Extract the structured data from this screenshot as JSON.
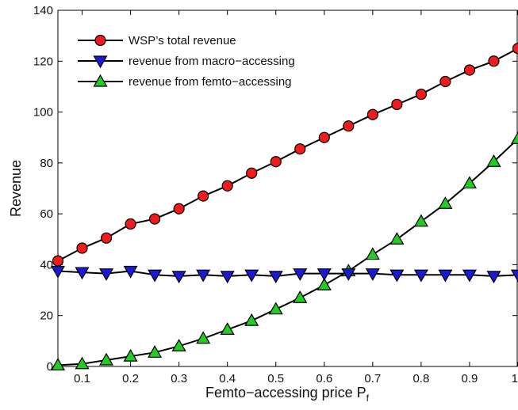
{
  "chart_data": {
    "type": "line",
    "xlabel": "Femto−accessing price P",
    "xlabel_subscript": "f",
    "ylabel": "Revenue",
    "xlim": [
      0.05,
      1.0
    ],
    "ylim": [
      0,
      140
    ],
    "xticks": [
      0.1,
      0.2,
      0.3,
      0.4,
      0.5,
      0.6,
      0.7,
      0.8,
      0.9,
      1
    ],
    "xtick_labels": [
      "0.1",
      "0.2",
      "0.3",
      "0.4",
      "0.5",
      "0.6",
      "0.7",
      "0.8",
      "0.9",
      "1"
    ],
    "yticks": [
      0,
      20,
      40,
      60,
      80,
      100,
      120,
      140
    ],
    "ytick_labels": [
      "0",
      "20",
      "40",
      "60",
      "80",
      "100",
      "120",
      "140"
    ],
    "grid": false,
    "legend_position": "top-left",
    "x": [
      0.05,
      0.1,
      0.15,
      0.2,
      0.25,
      0.3,
      0.35,
      0.4,
      0.45,
      0.5,
      0.55,
      0.6,
      0.65,
      0.7,
      0.75,
      0.8,
      0.85,
      0.9,
      0.95,
      1.0
    ],
    "series": [
      {
        "name": "WSP’s total revenue",
        "marker": "circle",
        "color": "#ee1c1c",
        "values": [
          41.5,
          46.5,
          50.5,
          56,
          58,
          62,
          67,
          71,
          76,
          80.5,
          85.5,
          90,
          94.5,
          99,
          103,
          107,
          112,
          116.5,
          120,
          125
        ]
      },
      {
        "name": "revenue from macro−accessing",
        "marker": "triangle-down",
        "color": "#1a1ad6",
        "values": [
          37.5,
          37,
          36.5,
          37.5,
          36,
          35.5,
          36,
          35.5,
          36,
          35.5,
          36.5,
          36.5,
          36.5,
          36.5,
          36,
          36,
          36,
          36,
          35.5,
          36
        ]
      },
      {
        "name": "revenue from femto−accessing",
        "marker": "triangle-up",
        "color": "#22cc22",
        "values": [
          0.5,
          1,
          2.5,
          4,
          5.5,
          8,
          11,
          14.5,
          18,
          22.5,
          27,
          32,
          37.5,
          44,
          50,
          57,
          64,
          72,
          80.5,
          89.5
        ]
      }
    ]
  }
}
